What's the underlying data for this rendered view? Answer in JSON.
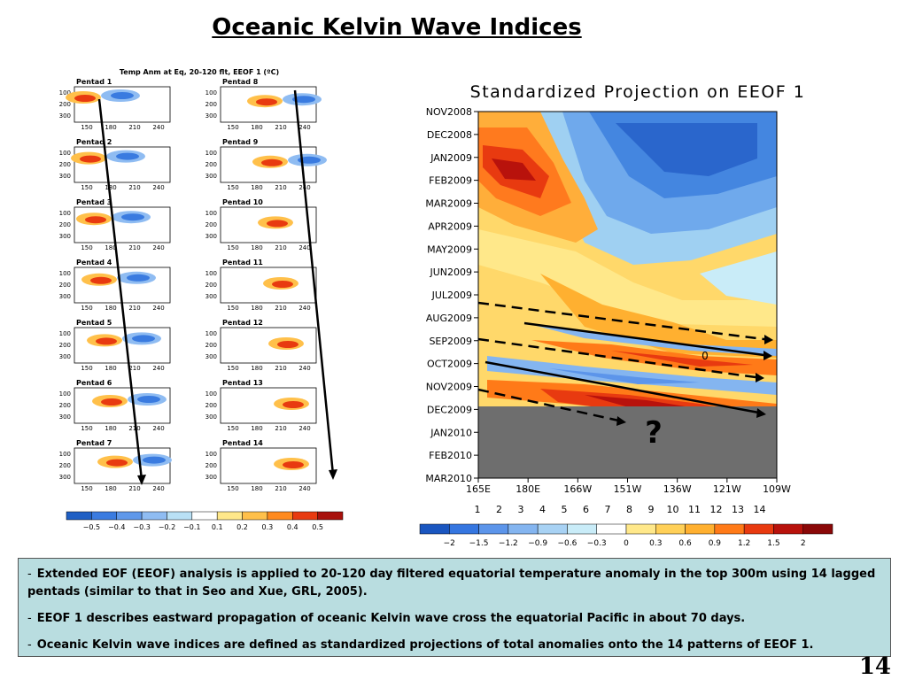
{
  "slide": {
    "title": "Oceanic Kelvin Wave Indices",
    "page_number": "14"
  },
  "pentad_figure": {
    "header": "Temp Anm at Eq, 20-120 flt, EEOF 1  (ºC)",
    "panel_labels": [
      "Pentad 1",
      "Pentad 2",
      "Pentad 3",
      "Pentad 4",
      "Pentad 5",
      "Pentad 6",
      "Pentad 7",
      "Pentad 8",
      "Pentad 9",
      "Pentad 10",
      "Pentad 11",
      "Pentad 12",
      "Pentad 13",
      "Pentad 14"
    ],
    "depth_ticks": [
      "100",
      "200",
      "300"
    ],
    "lon_ticks": [
      "150",
      "180",
      "210",
      "240"
    ],
    "colorbar": {
      "labels": [
        "−0.5",
        "−0.4",
        "−0.3",
        "−0.2",
        "−0.1",
        "0.1",
        "0.2",
        "0.3",
        "0.4",
        "0.5"
      ],
      "colors": [
        "#1f5fc4",
        "#3a7be0",
        "#5f98ea",
        "#8fbcf2",
        "#b9e0f5",
        "#ffffff",
        "#ffe88a",
        "#ffc04a",
        "#ff8a1e",
        "#e83a10",
        "#a8100c"
      ]
    }
  },
  "hovmoller_figure": {
    "title": "Standardized Projection on EEOF 1",
    "annotation_zero": "0",
    "unknown_marker": "?",
    "pentad_index_labels": [
      "1",
      "2",
      "3",
      "4",
      "5",
      "6",
      "7",
      "8",
      "9",
      "10",
      "11",
      "12",
      "13",
      "14"
    ],
    "colorbar": {
      "labels": [
        "−2",
        "−1.5",
        "−1.2",
        "−0.9",
        "−0.6",
        "−0.3",
        "0",
        "0.3",
        "0.6",
        "0.9",
        "1.2",
        "1.5",
        "2"
      ],
      "colors": [
        "#1a56c0",
        "#3576e0",
        "#5c95ea",
        "#84b5f0",
        "#a8d2f4",
        "#c9ecf8",
        "#ffffff",
        "#ffe88a",
        "#ffd058",
        "#ffb030",
        "#ff7a18",
        "#e83a10",
        "#b8120c",
        "#8a0808"
      ]
    }
  },
  "chart_data": {
    "type": "heatmap",
    "title": "Standardized Projection on EEOF 1",
    "xlabel": "",
    "ylabel": "",
    "x_ticks": [
      "165E",
      "180E",
      "166W",
      "151W",
      "136W",
      "121W",
      "109W"
    ],
    "y_ticks": [
      "NOV2008",
      "DEC2008",
      "JAN2009",
      "FEB2009",
      "MAR2009",
      "APR2009",
      "MAY2009",
      "JUN2009",
      "JUL2009",
      "AUG2009",
      "SEP2009",
      "OCT2009",
      "NOV2009",
      "DEC2009",
      "JAN2010",
      "FEB2010",
      "MAR2010"
    ],
    "colorbar_ticks": [
      -2,
      -1.5,
      -1.2,
      -0.9,
      -0.6,
      -0.3,
      0,
      0.3,
      0.6,
      0.9,
      1.2,
      1.5,
      2
    ],
    "missing_after": "DEC2009",
    "legend_position": "bottom",
    "grid": false
  },
  "text_box": {
    "bullets": [
      {
        "dash": "-",
        "text": "Extended EOF (EEOF) analysis is applied to 20-120 day filtered equatorial temperature anomaly in the top 300m using 14 lagged pentads (similar to that in Seo and Xue, GRL, 2005)."
      },
      {
        "dash": "-",
        "text": "EEOF 1 describes eastward propagation of  oceanic Kelvin wave cross the equatorial Pacific in about  70 days."
      },
      {
        "dash": "-",
        "text": "Oceanic Kelvin wave indices are defined as standardized projections of total anomalies onto the 14 patterns of  EEOF 1."
      }
    ]
  }
}
